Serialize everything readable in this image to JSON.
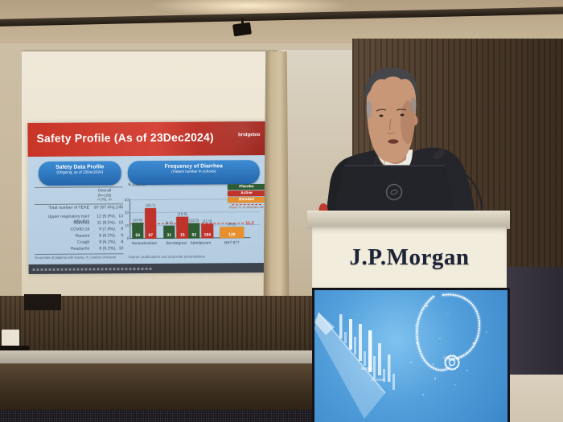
{
  "slide": {
    "logo": "bridgebio",
    "title": "Safety Profile (As of 23Dec2024)",
    "left_panel": {
      "header": "Safety Data Profile",
      "subheader": "(Ongoing, as of 23Dec2024)",
      "col_header": [
        "Overall",
        "(N=129)",
        "n (%), m"
      ],
      "rows": [
        {
          "label": "Total number of TEAE",
          "value": "87 (67.4%),",
          "m": "245"
        },
        {
          "label": "Upper respiratory tract infection",
          "value": "12 (9.3%),",
          "m": "13"
        },
        {
          "label": "Diarrhea",
          "value": "11 (8.5%),",
          "m": "13"
        },
        {
          "label": "COVID-19",
          "value": "9 (7.0%),",
          "m": "9"
        },
        {
          "label": "Nausea",
          "value": "8 (6.2%),",
          "m": "9"
        },
        {
          "label": "Cough",
          "value": "8 (6.2%),",
          "m": "8"
        },
        {
          "label": "Headache",
          "value": "8 (6.2%),",
          "m": "10"
        }
      ],
      "footnote": "N=number of patients with events, m: number of events"
    },
    "right_panel": {
      "header": "Frequency of Diarrhea",
      "subheader": "(Patient number in cohorts)",
      "source": "Source: publications and corporate presentations"
    }
  },
  "chart_data": {
    "type": "bar",
    "title": "Frequency of Diarrhea",
    "ylabel": "% patients",
    "ylim": [
      0,
      35
    ],
    "yticks": [
      0,
      10,
      20,
      30
    ],
    "grid": true,
    "legend_position": "top-right",
    "categories": [
      "Nerandomilast",
      "Bexotegrast",
      "Admilparant",
      "BBT-877"
    ],
    "series": [
      {
        "name": "Placebo",
        "color": "#2f5c33",
        "values": [
          12.6,
          9.7,
          12.0,
          null
        ],
        "n": [
          50,
          31,
          92,
          null
        ]
      },
      {
        "name": "Active",
        "color": "#bf332b",
        "values": [
          23.7,
          16.9,
          11.0,
          null
        ],
        "n": [
          97,
          15,
          184,
          null
        ]
      },
      {
        "name": "Blended",
        "color": "#e78f2d",
        "values": [
          null,
          null,
          null,
          8.5
        ],
        "n": [
          null,
          null,
          null,
          129
        ]
      }
    ],
    "reference_line": {
      "value": 11.2,
      "label": "Mean % of diarrhea AE",
      "color": "#d03a2a"
    }
  },
  "podium": {
    "sign": "J.P.Morgan"
  },
  "icons": {
    "laptop_logo": "dell-logo",
    "microphone": "microphone-icon",
    "spotlight": "spotlight-icon",
    "screen_art": "stethoscope-particle-art"
  }
}
